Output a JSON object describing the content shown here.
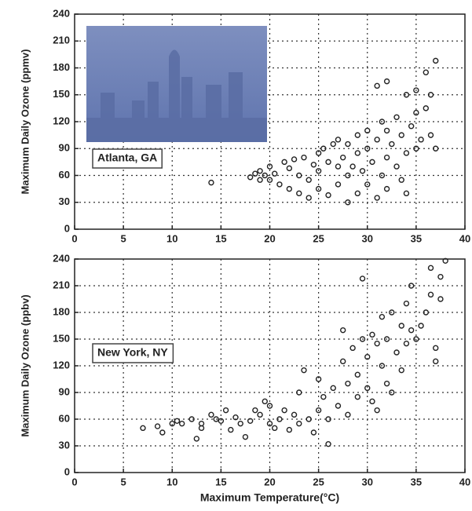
{
  "chart_data": [
    {
      "type": "scatter",
      "ylabel": "Maximum Daily Ozone (ppmv)",
      "annotation": "Atlanta, GA",
      "xlim": [
        0,
        40
      ],
      "ylim": [
        0,
        240
      ],
      "xticks": [
        0,
        5,
        10,
        15,
        20,
        25,
        30,
        35,
        40
      ],
      "yticks": [
        0,
        30,
        60,
        90,
        120,
        150,
        180,
        210,
        240
      ],
      "grid": true,
      "color": "#222222",
      "x": [
        14,
        18,
        18.5,
        19,
        19,
        19.5,
        20,
        20,
        20.5,
        21,
        21.5,
        22,
        22,
        22.5,
        23,
        23,
        23.5,
        24,
        24,
        24.5,
        25,
        25,
        25,
        25.5,
        26,
        26,
        26.5,
        27,
        27,
        27,
        27.5,
        28,
        28,
        28,
        28.5,
        29,
        29,
        29,
        29.5,
        30,
        30,
        30,
        30.5,
        31,
        31,
        31,
        31.5,
        31.5,
        32,
        32,
        32,
        32,
        32.5,
        33,
        33,
        33.5,
        33.5,
        34,
        34,
        34,
        34.5,
        35,
        35,
        35,
        35.5,
        36,
        36,
        36.5,
        36.5,
        37,
        37
      ],
      "y": [
        52,
        58,
        62,
        65,
        55,
        60,
        70,
        55,
        62,
        50,
        75,
        68,
        45,
        78,
        60,
        40,
        80,
        55,
        35,
        72,
        85,
        65,
        45,
        90,
        75,
        38,
        95,
        100,
        70,
        50,
        80,
        95,
        60,
        30,
        70,
        105,
        85,
        40,
        65,
        110,
        90,
        50,
        75,
        160,
        100,
        35,
        120,
        60,
        165,
        110,
        80,
        45,
        95,
        125,
        70,
        105,
        55,
        150,
        85,
        40,
        115,
        155,
        130,
        90,
        100,
        175,
        135,
        150,
        105,
        188,
        90
      ]
    },
    {
      "type": "scatter",
      "ylabel": "Maximum Daily Ozone (ppbv)",
      "xlabel": "Maximum Temperature(°C)",
      "annotation": "New York, NY",
      "xlim": [
        0,
        40
      ],
      "ylim": [
        0,
        240
      ],
      "xticks": [
        0,
        5,
        10,
        15,
        20,
        25,
        30,
        35,
        40
      ],
      "yticks": [
        0,
        30,
        60,
        90,
        120,
        150,
        180,
        210,
        240
      ],
      "grid": true,
      "color": "#222222",
      "x": [
        7,
        8.5,
        9,
        10,
        10.5,
        11,
        12,
        12.5,
        13,
        13,
        14,
        14.5,
        15,
        15.5,
        16,
        16.5,
        17,
        17.5,
        18,
        18.5,
        19,
        19.5,
        20,
        20,
        20.5,
        21,
        21.5,
        22,
        22.5,
        23,
        23,
        23.5,
        24,
        24.5,
        25,
        25,
        25.5,
        26,
        26,
        26.5,
        27,
        27.5,
        27.5,
        28,
        28,
        28.5,
        29,
        29,
        29.5,
        29.5,
        30,
        30,
        30.5,
        30.5,
        31,
        31,
        31.5,
        31.5,
        32,
        32,
        32.5,
        32.5,
        33,
        33.5,
        33.5,
        34,
        34,
        34.5,
        34.5,
        35,
        35.5,
        36,
        36.5,
        36.5,
        37,
        37,
        37.5,
        37.5,
        38
      ],
      "y": [
        50,
        52,
        45,
        55,
        58,
        55,
        60,
        38,
        50,
        55,
        65,
        60,
        58,
        70,
        48,
        62,
        55,
        40,
        58,
        70,
        65,
        80,
        55,
        75,
        50,
        60,
        70,
        48,
        65,
        90,
        55,
        115,
        60,
        45,
        105,
        70,
        85,
        32,
        60,
        95,
        75,
        125,
        160,
        100,
        65,
        140,
        85,
        110,
        218,
        150,
        130,
        95,
        155,
        80,
        145,
        70,
        175,
        120,
        150,
        100,
        180,
        90,
        135,
        165,
        115,
        190,
        145,
        210,
        160,
        150,
        165,
        180,
        230,
        200,
        125,
        140,
        220,
        195,
        238
      ]
    }
  ]
}
